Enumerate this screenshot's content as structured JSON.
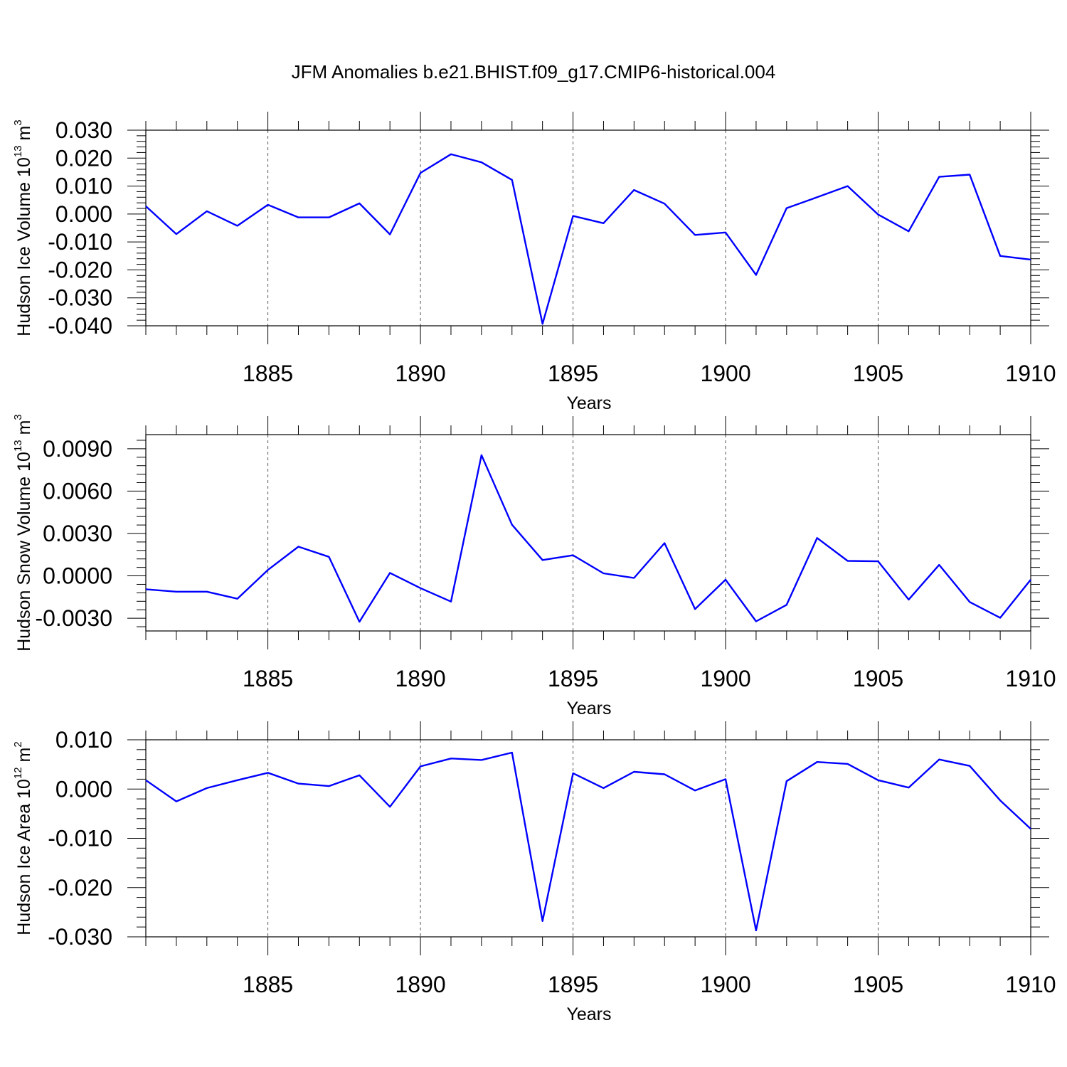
{
  "figure_title": "JFM Anomalies b.e21.BHIST.f09_g17.CMIP6-historical.004",
  "colors": {
    "series": "#0000ff",
    "axes": "#000000",
    "grid": "#555555"
  },
  "chart_data": [
    {
      "type": "line",
      "title": "JFM Anomalies b.e21.BHIST.f09_g17.CMIP6-historical.004",
      "ylabel": {
        "text": "Hudson Ice Volume 10",
        "sup": "13",
        "unit": " m",
        "unit_sup": "3"
      },
      "xlabel": "Years",
      "xlim": [
        1881,
        1910
      ],
      "ylim": [
        -0.04,
        0.03
      ],
      "yticks": [
        0.03,
        0.02,
        0.01,
        0.0,
        -0.01,
        -0.02,
        -0.03,
        -0.04
      ],
      "ytick_labels": [
        "0.030",
        "0.020",
        "0.010",
        "0.000",
        "-0.010",
        "-0.020",
        "-0.030",
        "-0.040"
      ],
      "xticks": [
        1885,
        1890,
        1895,
        1900,
        1905,
        1910
      ],
      "xtick_labels": [
        "1885",
        "1890",
        "1895",
        "1900",
        "1905",
        "1910"
      ],
      "x": [
        1881,
        1882,
        1883,
        1884,
        1885,
        1886,
        1887,
        1888,
        1889,
        1890,
        1891,
        1892,
        1893,
        1894,
        1895,
        1896,
        1897,
        1898,
        1899,
        1900,
        1901,
        1902,
        1903,
        1904,
        1905,
        1906,
        1907,
        1908,
        1909,
        1910
      ],
      "values": [
        0.0028,
        -0.0072,
        0.001,
        -0.0042,
        0.0033,
        -0.0012,
        -0.0012,
        0.0038,
        -0.0073,
        0.0147,
        0.0214,
        0.0185,
        0.0122,
        -0.0393,
        -0.0007,
        -0.0033,
        0.0086,
        0.0037,
        -0.0075,
        -0.0066,
        -0.0218,
        0.0021,
        0.006,
        0.01,
        -0.0002,
        -0.0062,
        0.0133,
        0.0141,
        -0.015,
        -0.0163
      ]
    },
    {
      "type": "line",
      "ylabel": {
        "text": "Hudson Snow Volume 10",
        "sup": "13",
        "unit": " m",
        "unit_sup": "3"
      },
      "xlabel": "Years",
      "xlim": [
        1881,
        1910
      ],
      "ylim": [
        -0.0039,
        0.01
      ],
      "yticks": [
        0.009,
        0.006,
        0.003,
        0.0,
        -0.003
      ],
      "ytick_labels": [
        "0.0090",
        "0.0060",
        "0.0030",
        "0.0000",
        "-0.0030"
      ],
      "xticks": [
        1885,
        1890,
        1895,
        1900,
        1905,
        1910
      ],
      "xtick_labels": [
        "1885",
        "1890",
        "1895",
        "1900",
        "1905",
        "1910"
      ],
      "x": [
        1881,
        1882,
        1883,
        1884,
        1885,
        1886,
        1887,
        1888,
        1889,
        1890,
        1891,
        1892,
        1893,
        1894,
        1895,
        1896,
        1897,
        1898,
        1899,
        1900,
        1901,
        1902,
        1903,
        1904,
        1905,
        1906,
        1907,
        1908,
        1909,
        1910
      ],
      "values": [
        -0.00095,
        -0.00112,
        -0.00112,
        -0.00162,
        0.00042,
        0.00207,
        0.00135,
        -0.00325,
        0.00021,
        -0.00087,
        -0.00182,
        0.00855,
        0.00362,
        0.00112,
        0.00146,
        0.00018,
        -0.00015,
        0.00232,
        -0.00235,
        -0.00027,
        -0.00322,
        -0.00205,
        0.00268,
        0.00106,
        0.00103,
        -0.00168,
        0.00078,
        -0.00185,
        -0.00297,
        -0.00027
      ]
    },
    {
      "type": "line",
      "ylabel": {
        "text": "Hudson Ice Area 10",
        "sup": "12",
        "unit": " m",
        "unit_sup": "2"
      },
      "xlabel": "Years",
      "xlim": [
        1881,
        1910
      ],
      "ylim": [
        -0.03,
        0.01
      ],
      "yticks": [
        0.01,
        0.0,
        -0.01,
        -0.02,
        -0.03
      ],
      "ytick_labels": [
        "0.010",
        "0.000",
        "-0.010",
        "-0.020",
        "-0.030"
      ],
      "xticks": [
        1885,
        1890,
        1895,
        1900,
        1905,
        1910
      ],
      "xtick_labels": [
        "1885",
        "1890",
        "1895",
        "1900",
        "1905",
        "1910"
      ],
      "x": [
        1881,
        1882,
        1883,
        1884,
        1885,
        1886,
        1887,
        1888,
        1889,
        1890,
        1891,
        1892,
        1893,
        1894,
        1895,
        1896,
        1897,
        1898,
        1899,
        1900,
        1901,
        1902,
        1903,
        1904,
        1905,
        1906,
        1907,
        1908,
        1909,
        1910
      ],
      "values": [
        0.0018,
        -0.0025,
        0.0002,
        0.0018,
        0.0033,
        0.0011,
        0.0006,
        0.0028,
        -0.0036,
        0.0046,
        0.0062,
        0.0059,
        0.0074,
        -0.0268,
        0.0032,
        0.0002,
        0.0035,
        0.003,
        -0.0003,
        0.002,
        -0.0287,
        0.0016,
        0.0055,
        0.0051,
        0.0018,
        0.0003,
        0.006,
        0.0047,
        -0.0023,
        -0.0081
      ]
    }
  ]
}
